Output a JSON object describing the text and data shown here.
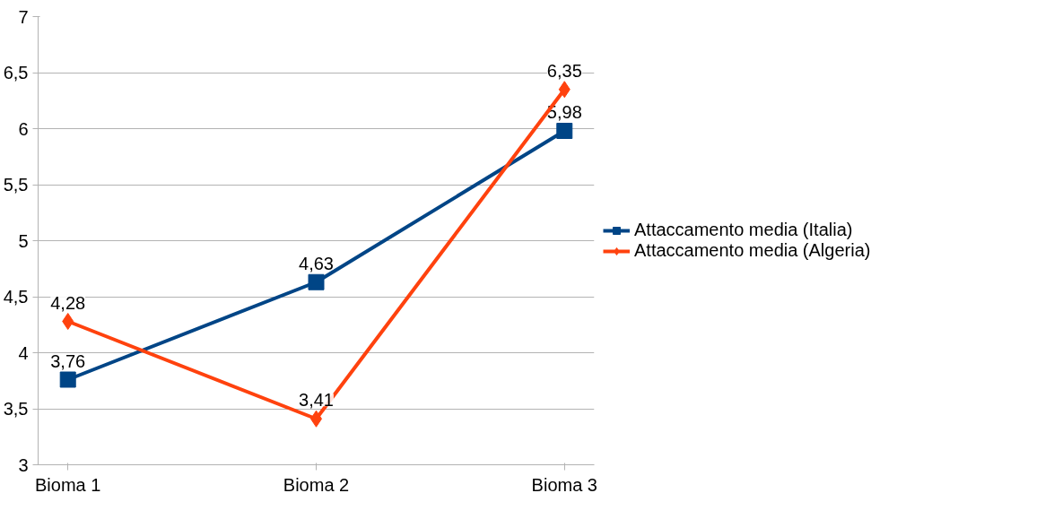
{
  "chart_data": {
    "type": "line",
    "categories": [
      "Bioma 1",
      "Bioma 2",
      "Bioma 3"
    ],
    "series": [
      {
        "name": "Attaccamento media (Italia)",
        "color": "#004586",
        "values": [
          3.76,
          4.63,
          5.98
        ],
        "value_labels": [
          "3,76",
          "4,63",
          "5,98"
        ],
        "marker": "square"
      },
      {
        "name": "Attaccamento media (Algeria)",
        "color": "#ff420e",
        "values": [
          4.28,
          3.41,
          6.35
        ],
        "value_labels": [
          "4,28",
          "3,41",
          "6,35"
        ],
        "marker": "diamond"
      }
    ],
    "ylim": [
      3,
      7
    ],
    "yticks": [
      3,
      {
        "value": 3.5,
        "label": "3,5"
      },
      4,
      {
        "value": 4.5,
        "label": "4,5"
      },
      5,
      {
        "value": 5.5,
        "label": "5,5"
      },
      6,
      {
        "value": 6.5,
        "label": "6,5"
      },
      7
    ],
    "grid": "y",
    "legend": "right",
    "line_style": "solid"
  }
}
